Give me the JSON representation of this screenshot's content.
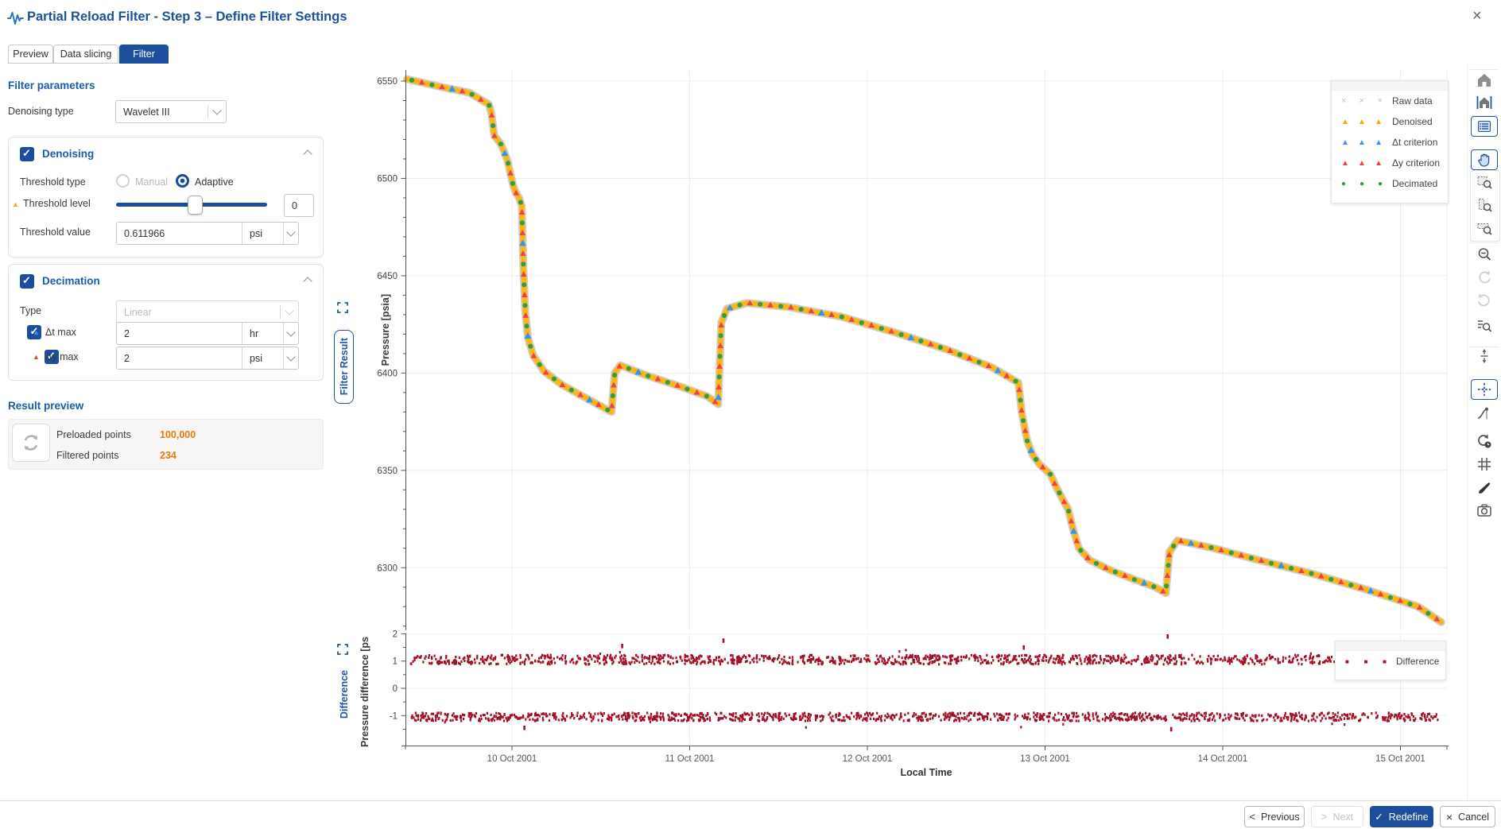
{
  "window": {
    "title": "Partial Reload Filter - Step 3 – Define Filter Settings"
  },
  "tabs": [
    {
      "label": "Preview",
      "active": false
    },
    {
      "label": "Data slicing",
      "active": false
    },
    {
      "label": "Filter",
      "active": true
    }
  ],
  "panel": {
    "section_title": "Filter parameters",
    "denoising_type": {
      "label": "Denoising type",
      "value": "Wavelet III"
    },
    "denoising": {
      "title": "Denoising",
      "checked": true,
      "threshold_type": {
        "label": "Threshold type",
        "option_manual": "Manual",
        "option_adaptive": "Adaptive",
        "selected": "Adaptive"
      },
      "threshold_level": {
        "label": "Threshold level",
        "slider_percent": 51,
        "box_value": "0"
      },
      "threshold_value": {
        "label": "Threshold value",
        "value": "0.611966",
        "unit": "psi"
      }
    },
    "decimation": {
      "title": "Decimation",
      "checked": true,
      "type": {
        "label": "Type",
        "value": "Linear",
        "disabled": true
      },
      "dt_max": {
        "label": "Δt max",
        "value": "2",
        "unit": "hr",
        "checked": true
      },
      "dy_max": {
        "label": "Δy max",
        "value": "2",
        "unit": "psi",
        "checked": true
      }
    },
    "result_preview": {
      "title": "Result preview",
      "rows": [
        {
          "label": "Preloaded points",
          "value": "100,000"
        },
        {
          "label": "Filtered points",
          "value": "234"
        }
      ]
    }
  },
  "chart_tabs": {
    "filter_result": "Filter Result",
    "difference": "Difference"
  },
  "chart_data": {
    "type": "line",
    "xlabel": "Local Time",
    "ylabel_main": "Pressure [psia]",
    "ylabel_diff": "Pressure difference [ps",
    "x_ticks": [
      "10 Oct 2001",
      "11 Oct 2001",
      "12 Oct 2001",
      "13 Oct 2001",
      "14 Oct 2001",
      "15 Oct 2001"
    ],
    "x_tick_days": [
      10,
      11,
      12,
      13,
      14,
      15
    ],
    "x_range_days": [
      9.41,
      15.26
    ],
    "y_main_ticks": [
      6300,
      6350,
      6400,
      6450,
      6500,
      6550
    ],
    "y_main_range": [
      6268,
      6556
    ],
    "y_diff_ticks": [
      -1,
      0,
      1,
      2
    ],
    "y_diff_range": [
      -2,
      2
    ],
    "legend_main": [
      {
        "label": "Raw data",
        "marker": "x",
        "color": "#c0c0c0"
      },
      {
        "label": "Denoised",
        "marker": "triangle",
        "color": "#f5a70a"
      },
      {
        "label": "Δt criterion",
        "marker": "triangle",
        "color": "#2e96f0"
      },
      {
        "label": "Δy criterion",
        "marker": "triangle",
        "color": "#ee4046"
      },
      {
        "label": "Decimated",
        "marker": "circle",
        "color": "#2f9e44"
      }
    ],
    "legend_diff": [
      {
        "label": "Difference",
        "marker": "square",
        "color": "#a31126"
      }
    ],
    "pressure_series": [
      [
        9.41,
        6551
      ],
      [
        9.6,
        6547
      ],
      [
        9.76,
        6544
      ],
      [
        9.87,
        6538
      ],
      [
        9.885,
        6533
      ],
      [
        9.9,
        6522
      ],
      [
        9.935,
        6518
      ],
      [
        9.955,
        6514
      ],
      [
        9.975,
        6509
      ],
      [
        9.99,
        6503
      ],
      [
        10.005,
        6497
      ],
      [
        10.02,
        6493
      ],
      [
        10.04,
        6490
      ],
      [
        10.055,
        6486
      ],
      [
        10.065,
        6452
      ],
      [
        10.075,
        6431
      ],
      [
        10.09,
        6418
      ],
      [
        10.12,
        6409
      ],
      [
        10.18,
        6401
      ],
      [
        10.28,
        6394
      ],
      [
        10.4,
        6388
      ],
      [
        10.5,
        6383
      ],
      [
        10.56,
        6380
      ],
      [
        10.578,
        6400
      ],
      [
        10.61,
        6404
      ],
      [
        10.75,
        6399
      ],
      [
        10.95,
        6393
      ],
      [
        11.1,
        6388
      ],
      [
        11.16,
        6384
      ],
      [
        11.178,
        6426
      ],
      [
        11.21,
        6433
      ],
      [
        11.32,
        6436
      ],
      [
        11.55,
        6434
      ],
      [
        11.85,
        6429
      ],
      [
        12.15,
        6421
      ],
      [
        12.45,
        6412
      ],
      [
        12.7,
        6403
      ],
      [
        12.85,
        6395
      ],
      [
        12.87,
        6379
      ],
      [
        12.9,
        6365
      ],
      [
        12.93,
        6358
      ],
      [
        12.97,
        6353
      ],
      [
        13.03,
        6348
      ],
      [
        13.06,
        6342
      ],
      [
        13.1,
        6335
      ],
      [
        13.13,
        6330
      ],
      [
        13.16,
        6319
      ],
      [
        13.19,
        6310
      ],
      [
        13.25,
        6304
      ],
      [
        13.36,
        6299
      ],
      [
        13.5,
        6294
      ],
      [
        13.62,
        6290
      ],
      [
        13.68,
        6287
      ],
      [
        13.7,
        6308
      ],
      [
        13.745,
        6314
      ],
      [
        13.95,
        6310
      ],
      [
        14.2,
        6304
      ],
      [
        14.5,
        6297
      ],
      [
        14.8,
        6289
      ],
      [
        15.1,
        6280
      ],
      [
        15.23,
        6272
      ]
    ],
    "diff_bands": [
      {
        "center": 1.05,
        "jitter": 0.17
      },
      {
        "center": -1.05,
        "jitter": 0.15
      }
    ],
    "diff_outliers": [
      [
        10.07,
        -1.45
      ],
      [
        10.62,
        1.55
      ],
      [
        11.19,
        1.75
      ],
      [
        12.88,
        1.5
      ],
      [
        13.69,
        1.9
      ],
      [
        13.71,
        -1.5
      ]
    ]
  },
  "toolbar": {
    "items": [
      {
        "name": "home",
        "selected": false,
        "disabled": false
      },
      {
        "name": "home-axes",
        "selected": false,
        "disabled": false
      },
      {
        "name": "legend-toggle",
        "selected": true,
        "disabled": false
      },
      {
        "name": "pan",
        "selected": true,
        "disabled": false
      },
      {
        "name": "zoom-window",
        "selected": false,
        "disabled": false
      },
      {
        "name": "zoom-x",
        "selected": false,
        "disabled": false
      },
      {
        "name": "zoom-y",
        "selected": false,
        "disabled": false
      },
      {
        "name": "zoom-out",
        "selected": false,
        "disabled": false
      },
      {
        "name": "undo",
        "selected": false,
        "disabled": true
      },
      {
        "name": "redo",
        "selected": false,
        "disabled": true
      },
      {
        "name": "zoom-to-data",
        "selected": false,
        "disabled": false
      },
      {
        "name": "autoscale-y",
        "selected": false,
        "disabled": false
      },
      {
        "name": "crosshair",
        "selected": true,
        "disabled": false
      },
      {
        "name": "interpolation",
        "selected": false,
        "disabled": false
      },
      {
        "name": "time-shift",
        "selected": false,
        "disabled": false
      },
      {
        "name": "grid-toggle",
        "selected": false,
        "disabled": false
      },
      {
        "name": "style-brush",
        "selected": false,
        "disabled": false
      },
      {
        "name": "snapshot-camera",
        "selected": false,
        "disabled": false
      }
    ]
  },
  "footer": {
    "previous": "Previous",
    "next": "Next",
    "redefine": "Redefine",
    "cancel": "Cancel"
  }
}
